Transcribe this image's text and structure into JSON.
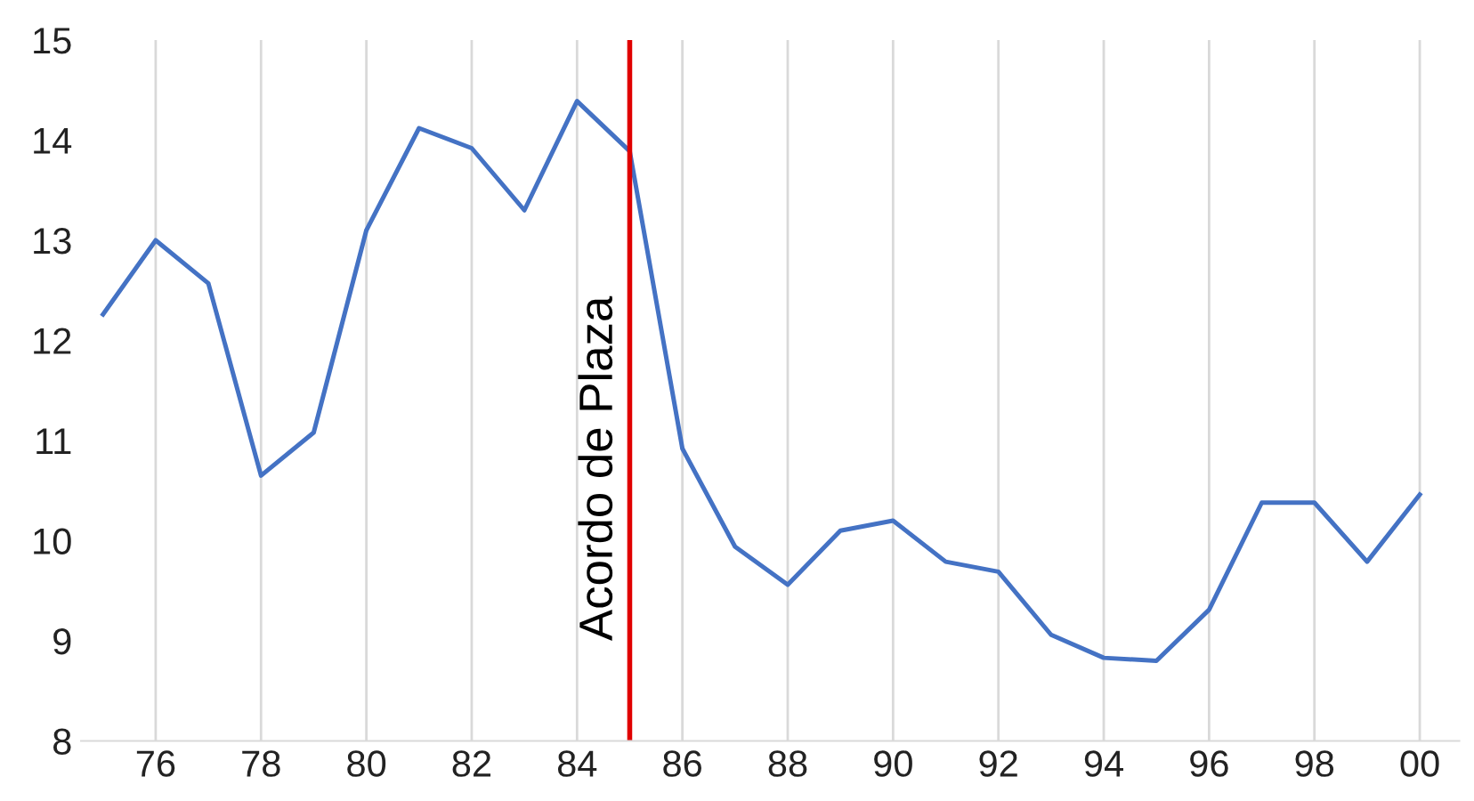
{
  "chart_data": {
    "type": "line",
    "x": [
      "1975",
      "1976",
      "1977",
      "1978",
      "1979",
      "1980",
      "1981",
      "1982",
      "1983",
      "1984",
      "1985",
      "1986",
      "1987",
      "1988",
      "1989",
      "1990",
      "1991",
      "1992",
      "1993",
      "1994",
      "1995",
      "1996",
      "1997",
      "1998",
      "1999",
      "2000"
    ],
    "series": [
      {
        "color": "#4472c4",
        "values": [
          12.26,
          13.0,
          12.57,
          10.65,
          11.08,
          13.1,
          14.12,
          13.92,
          13.3,
          14.39,
          13.89,
          10.92,
          9.94,
          9.56,
          10.1,
          10.2,
          9.79,
          9.69,
          9.06,
          8.83,
          8.8,
          9.31,
          10.38,
          10.38,
          9.79,
          10.46
        ]
      }
    ],
    "xlim": [
      "1974-08",
      "2000-10"
    ],
    "xticks": [
      {
        "value": "1976",
        "label": "76"
      },
      {
        "value": "1978",
        "label": "78"
      },
      {
        "value": "1980",
        "label": "80"
      },
      {
        "value": "1982",
        "label": "82"
      },
      {
        "value": "1984",
        "label": "84"
      },
      {
        "value": "1986",
        "label": "86"
      },
      {
        "value": "1988",
        "label": "88"
      },
      {
        "value": "1990",
        "label": "90"
      },
      {
        "value": "1992",
        "label": "92"
      },
      {
        "value": "1994",
        "label": "94"
      },
      {
        "value": "1996",
        "label": "96"
      },
      {
        "value": "1998",
        "label": "98"
      },
      {
        "value": "2000",
        "label": "00"
      }
    ],
    "ylim": [
      8,
      15
    ],
    "yticks": [
      8,
      9,
      10,
      11,
      12,
      13,
      14,
      15
    ],
    "grid": "x",
    "marker": "none",
    "line_style": "solid",
    "ref_lines": [
      {
        "axis": "x",
        "value": "1985",
        "label": "Acordo de Plaza",
        "color": "#e00000",
        "line_style": "solid"
      }
    ]
  }
}
